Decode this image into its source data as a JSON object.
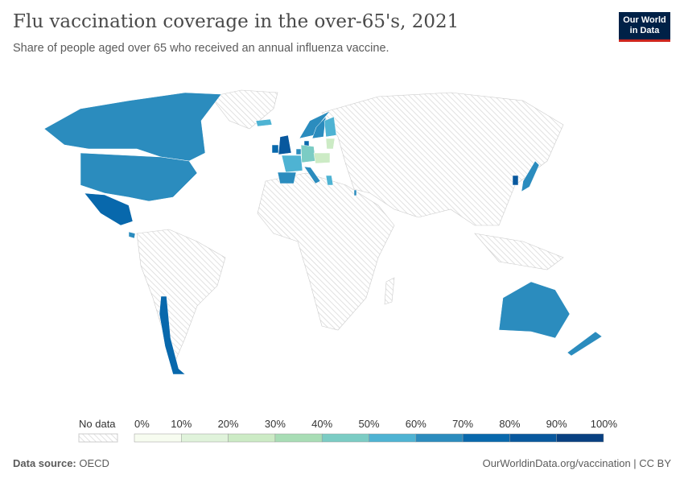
{
  "header": {
    "title": "Flu vaccination coverage in the over-65's, 2021",
    "subtitle": "Share of people aged over 65 who received an annual influenza vaccine.",
    "logo_line1": "Our World",
    "logo_line2": "in Data"
  },
  "legend": {
    "no_data_label": "No data",
    "ticks": [
      "0%",
      "10%",
      "20%",
      "30%",
      "40%",
      "50%",
      "60%",
      "70%",
      "80%",
      "90%",
      "100%"
    ],
    "colors": [
      "#f7fcf0",
      "#e0f3db",
      "#ccebc5",
      "#a8ddb5",
      "#7bccc4",
      "#4eb3d3",
      "#2b8cbe",
      "#0868ac",
      "#08589e",
      "#084081"
    ]
  },
  "footer": {
    "source_label": "Data source:",
    "source": "OECD",
    "url": "OurWorldinData.org/vaccination | CC BY"
  },
  "chart_data": {
    "type": "choropleth",
    "unit": "%",
    "color_domain": [
      0,
      100
    ],
    "countries": [
      {
        "name": "Canada",
        "bin": "60-70%"
      },
      {
        "name": "United States",
        "bin": "60-70%"
      },
      {
        "name": "Mexico",
        "bin": "70-80%"
      },
      {
        "name": "Costa Rica",
        "bin": "60-70%"
      },
      {
        "name": "Chile",
        "bin": "70-80%"
      },
      {
        "name": "Iceland",
        "bin": "50-60%"
      },
      {
        "name": "United Kingdom",
        "bin": "80-90%"
      },
      {
        "name": "Ireland",
        "bin": "70-80%"
      },
      {
        "name": "Norway",
        "bin": "60-70%"
      },
      {
        "name": "Sweden",
        "bin": "60-70%"
      },
      {
        "name": "Finland",
        "bin": "50-60%"
      },
      {
        "name": "Denmark",
        "bin": "70-80%"
      },
      {
        "name": "Netherlands",
        "bin": "60-70%"
      },
      {
        "name": "Germany",
        "bin": "40-50%"
      },
      {
        "name": "France",
        "bin": "50-60%"
      },
      {
        "name": "Spain",
        "bin": "60-70%"
      },
      {
        "name": "Portugal",
        "bin": "60-70%"
      },
      {
        "name": "Italy",
        "bin": "60-70%"
      },
      {
        "name": "Greece",
        "bin": "50-60%"
      },
      {
        "name": "Austria",
        "bin": "20-30%"
      },
      {
        "name": "Czechia",
        "bin": "20-30%"
      },
      {
        "name": "Hungary",
        "bin": "20-30%"
      },
      {
        "name": "Slovakia",
        "bin": "20-30%"
      },
      {
        "name": "Estonia",
        "bin": "10-20%"
      },
      {
        "name": "Latvia",
        "bin": "10-20%"
      },
      {
        "name": "Lithuania",
        "bin": "10-20%"
      },
      {
        "name": "Israel",
        "bin": "60-70%"
      },
      {
        "name": "South Korea",
        "bin": "80-90%"
      },
      {
        "name": "Japan",
        "bin": "60-70%"
      },
      {
        "name": "Australia",
        "bin": "60-70%"
      },
      {
        "name": "New Zealand",
        "bin": "60-70%"
      }
    ]
  }
}
